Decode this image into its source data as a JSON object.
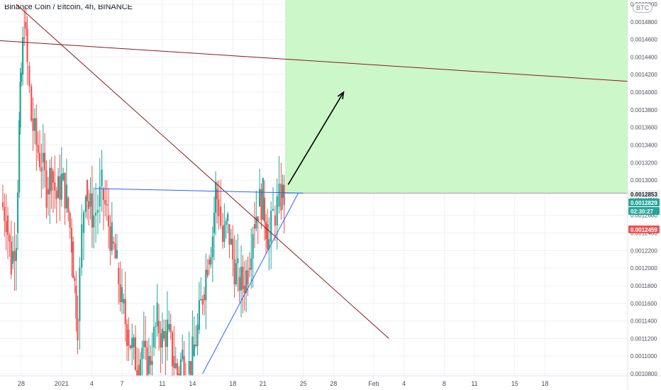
{
  "header": {
    "title": "Binance Coin / Bitcoin, 4h, BINANCE",
    "currency": "BTC"
  },
  "colors": {
    "up": "#26a69a",
    "down": "#ef5350",
    "accent_blue": "#2962ff",
    "trend_red": "#8b1a1a",
    "target_zone": "#ccf7c8",
    "stop_zone": "#fcd6d6"
  },
  "chart_data": {
    "type": "candlestick",
    "title": "Binance Coin / Bitcoin, 4h, BINANCE",
    "xlabel": "",
    "ylabel": "",
    "x_ticks": [
      "28",
      "2021",
      "4",
      "7",
      "11",
      "14",
      "18",
      "21",
      "25",
      "28",
      "Feb",
      "4",
      "8",
      "11",
      "15",
      "18"
    ],
    "y_ticks": [
      "0.0010800",
      "0.0011000",
      "0.0011200",
      "0.0011400",
      "0.0011600",
      "0.0011800",
      "0.0012000",
      "0.0012200",
      "0.0012400",
      "0.0012600",
      "0.0012800",
      "0.0013000",
      "0.0013200",
      "0.0013400",
      "0.0013600",
      "0.0013800",
      "0.0014000",
      "0.0014200",
      "0.0014400",
      "0.0014600",
      "0.0014800",
      "0.0015000"
    ],
    "ylim": [
      0.00108,
      0.0015
    ],
    "price_labels": [
      {
        "text": "0.0012853",
        "value": 0.0012853,
        "color": "#f0f0f0",
        "text_color": "#131722"
      },
      {
        "text": "0.0012829",
        "value": 0.0012829,
        "color": "#26a69a",
        "text_color": "#ffffff"
      },
      {
        "text": "02:30:27",
        "value": 0.00127,
        "color": "#26a69a",
        "text_color": "#ffffff"
      },
      {
        "text": "0.0012459",
        "value": 0.0012459,
        "color": "#ef5350",
        "text_color": "#ffffff"
      }
    ],
    "series": [
      {
        "day": 26.0,
        "close": 0.001275
      },
      {
        "day": 26.5,
        "close": 0.00126
      },
      {
        "day": 27.0,
        "close": 0.001205
      },
      {
        "day": 27.5,
        "close": 0.00124
      },
      {
        "day": 27.8,
        "close": 0.00136
      },
      {
        "day": 28.0,
        "close": 0.00142
      },
      {
        "day": 28.3,
        "close": 0.00148
      },
      {
        "day": 28.6,
        "close": 0.00143
      },
      {
        "day": 29.0,
        "close": 0.00137
      },
      {
        "day": 29.5,
        "close": 0.00134
      },
      {
        "day": 30.0,
        "close": 0.00132
      },
      {
        "day": 30.5,
        "close": 0.00129
      },
      {
        "day": 31.0,
        "close": 0.00131
      },
      {
        "day": 31.5,
        "close": 0.00128
      },
      {
        "day": 32.0,
        "close": 0.0013
      },
      {
        "day": 32.5,
        "close": 0.00128
      },
      {
        "day": 33.0,
        "close": 0.00123
      },
      {
        "day": 33.3,
        "close": 0.00118
      },
      {
        "day": 33.6,
        "close": 0.00114
      },
      {
        "day": 34.0,
        "close": 0.00124
      },
      {
        "day": 34.4,
        "close": 0.0013
      },
      {
        "day": 34.7,
        "close": 0.00127
      },
      {
        "day": 35.2,
        "close": 0.00126
      },
      {
        "day": 35.6,
        "close": 0.00127
      },
      {
        "day": 36.0,
        "close": 0.00129
      },
      {
        "day": 36.5,
        "close": 0.00126
      },
      {
        "day": 37.0,
        "close": 0.00123
      },
      {
        "day": 37.5,
        "close": 0.0012
      },
      {
        "day": 38.0,
        "close": 0.00116
      },
      {
        "day": 38.5,
        "close": 0.00113
      },
      {
        "day": 39.0,
        "close": 0.00111
      },
      {
        "day": 39.5,
        "close": 0.00109
      },
      {
        "day": 40.0,
        "close": 0.00111
      },
      {
        "day": 40.5,
        "close": 0.00108
      },
      {
        "day": 41.0,
        "close": 0.00111
      },
      {
        "day": 41.5,
        "close": 0.00114
      },
      {
        "day": 42.0,
        "close": 0.00112
      },
      {
        "day": 42.5,
        "close": 0.00113
      },
      {
        "day": 43.0,
        "close": 0.0011
      },
      {
        "day": 43.5,
        "close": 0.00108
      },
      {
        "day": 44.0,
        "close": 0.0011
      },
      {
        "day": 44.5,
        "close": 0.00108
      },
      {
        "day": 45.0,
        "close": 0.0011
      },
      {
        "day": 45.5,
        "close": 0.00113
      },
      {
        "day": 46.0,
        "close": 0.00117
      },
      {
        "day": 46.5,
        "close": 0.00121
      },
      {
        "day": 47.0,
        "close": 0.00124
      },
      {
        "day": 47.3,
        "close": 0.00129
      },
      {
        "day": 47.6,
        "close": 0.00127
      },
      {
        "day": 48.0,
        "close": 0.00123
      },
      {
        "day": 48.5,
        "close": 0.00125
      },
      {
        "day": 49.0,
        "close": 0.00121
      },
      {
        "day": 49.5,
        "close": 0.00119
      },
      {
        "day": 50.0,
        "close": 0.00118
      },
      {
        "day": 50.5,
        "close": 0.0012
      },
      {
        "day": 51.0,
        "close": 0.00125
      },
      {
        "day": 51.5,
        "close": 0.00127
      },
      {
        "day": 52.0,
        "close": 0.00128
      },
      {
        "day": 52.3,
        "close": 0.00125
      },
      {
        "day": 52.6,
        "close": 0.00123
      },
      {
        "day": 53.0,
        "close": 0.00126
      },
      {
        "day": 53.4,
        "close": 0.00127
      },
      {
        "day": 53.8,
        "close": 0.00128
      },
      {
        "day": 54.1,
        "close": 0.0012829
      }
    ],
    "drawings": {
      "horizontal_resistance": {
        "from": {
          "day": 35.3,
          "price": 0.0012905
        },
        "to": {
          "day": 56.0,
          "price": 0.0012853
        }
      },
      "rising_support": {
        "from": {
          "day": 46.0,
          "price": 0.00108
        },
        "to": {
          "day": 55.5,
          "price": 0.0012853
        }
      },
      "falling_trendline": {
        "from": {
          "day": 27.5,
          "price": 0.0015
        },
        "to": {
          "day": 64.5,
          "price": 0.00112
        }
      },
      "long_trendline": {
        "from": {
          "day": 24.0,
          "price": 0.00146
        },
        "to": {
          "day": 91.5,
          "price": 0.00141
        }
      },
      "arrow": {
        "from": {
          "day": 54.5,
          "price": 0.001295
        },
        "to": {
          "day": 60.0,
          "price": 0.0014
        }
      },
      "target_zone": {
        "day_from": 54.2,
        "price_from": 0.0012853,
        "price_to": 0.0015
      },
      "stop_zone": {
        "day_from": 54.2,
        "price_from": 0.0012459,
        "price_to": 0.0012853
      }
    }
  }
}
